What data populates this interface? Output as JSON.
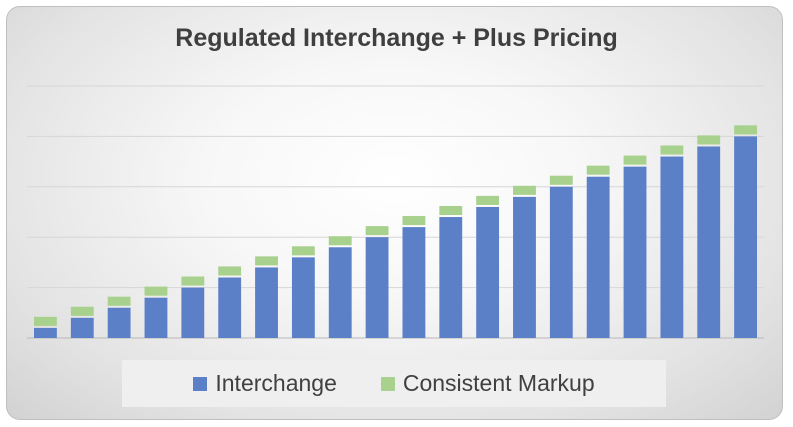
{
  "chart_data": {
    "type": "bar",
    "stacked": true,
    "title": "Regulated Interchange + Plus Pricing",
    "categories": [
      "",
      "",
      "",
      "",
      "",
      "",
      "",
      "",
      "",
      "",
      "",
      "",
      "",
      "",
      "",
      "",
      "",
      "",
      "",
      ""
    ],
    "series": [
      {
        "name": "Interchange",
        "color": "#5b80c8",
        "values": [
          1,
          2,
          3,
          4,
          5,
          6,
          7,
          8,
          9,
          10,
          11,
          12,
          13,
          14,
          15,
          16,
          17,
          18,
          19,
          20
        ]
      },
      {
        "name": "Consistent Markup",
        "color": "#a9d18e",
        "values": [
          1.1,
          1.1,
          1.1,
          1.1,
          1.1,
          1.1,
          1.1,
          1.1,
          1.1,
          1.1,
          1.1,
          1.1,
          1.1,
          1.1,
          1.1,
          1.1,
          1.1,
          1.1,
          1.1,
          1.1
        ]
      }
    ],
    "ylim": [
      0,
      25
    ],
    "grid": true,
    "legend_position": "bottom",
    "xlabel": "",
    "ylabel": ""
  }
}
